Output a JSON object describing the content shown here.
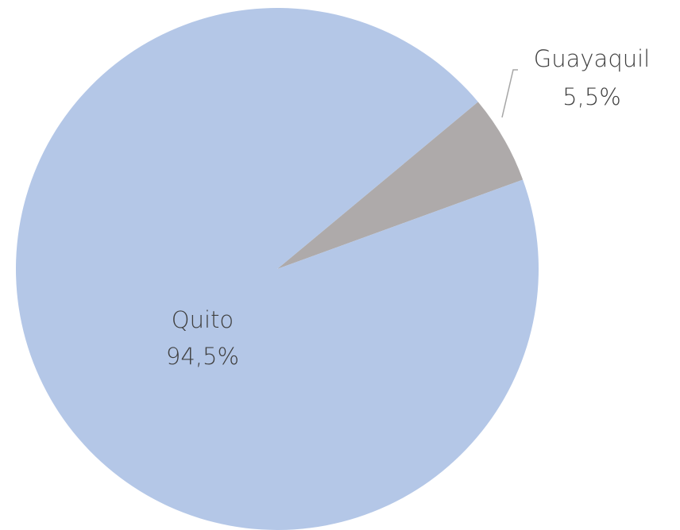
{
  "chart_data": {
    "type": "pie",
    "categories": [
      "Guayaquil",
      "Quito"
    ],
    "values": [
      5.5,
      94.5
    ],
    "value_labels": [
      "5,5%",
      "94,5%"
    ],
    "colors": [
      "#aeaaaa",
      "#b4c7e7"
    ]
  }
}
